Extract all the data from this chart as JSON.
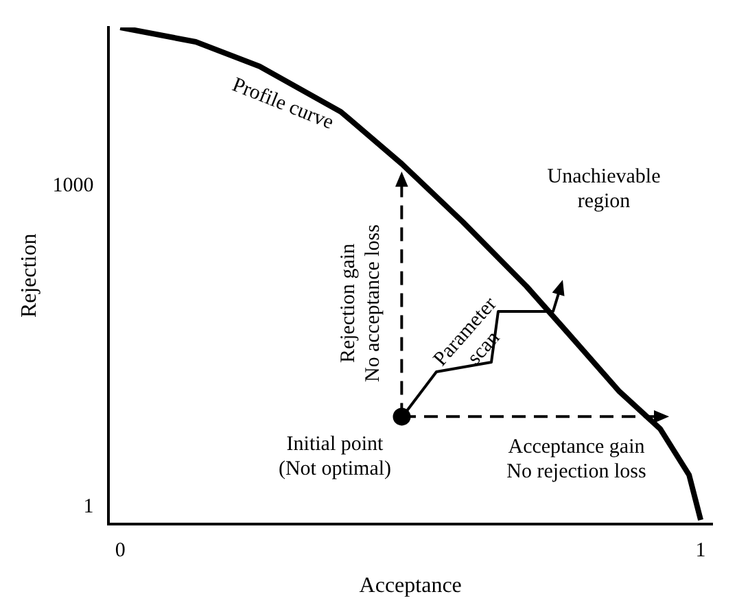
{
  "chart_data": {
    "type": "line",
    "xlabel": "Acceptance",
    "ylabel": "Rejection",
    "log": "y",
    "xlim": [
      -0.02,
      1.02
    ],
    "xticks": [
      0,
      1
    ],
    "ylim": [
      0.7,
      30000
    ],
    "yticks": [
      1,
      1000
    ],
    "grid": false,
    "legend": false,
    "annotations": [
      "Profile curve",
      "Unachievable region",
      "Rejection gain\nNo acceptance loss",
      "Parameter scan",
      "Initial point\n(Not optimal)",
      "Acceptance gain\nNo rejection loss"
    ],
    "series": [
      {
        "color": "#000000",
        "line_style": "solid",
        "x": [
          0,
          0.13,
          0.24,
          0.38,
          0.485,
          0.59,
          0.7,
          0.77,
          0.86,
          0.93,
          0.98,
          1.0
        ],
        "values": [
          30000,
          22000,
          13000,
          4900,
          1600,
          460,
          115,
          43,
          12,
          5.4,
          2,
          0.76
        ]
      },
      {
        "type": "scatter",
        "color": "#000000",
        "marker": "circle",
        "x": [
          0.485
        ],
        "values": [
          7
        ]
      }
    ]
  }
}
